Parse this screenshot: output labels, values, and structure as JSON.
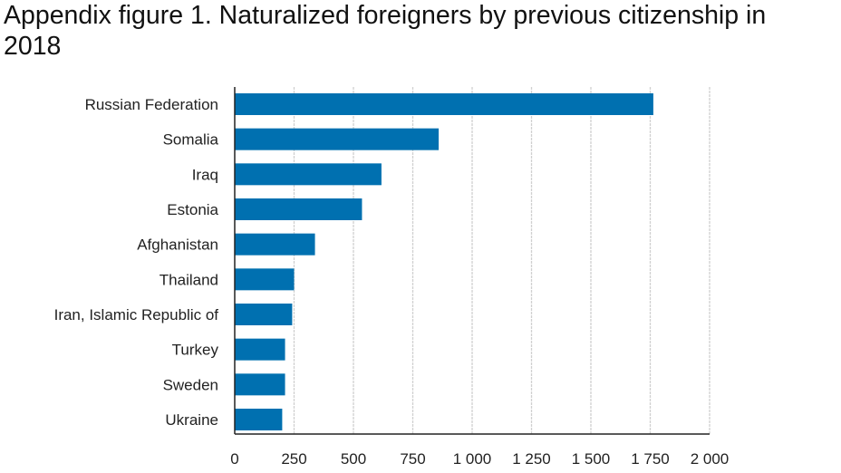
{
  "chart_data": {
    "type": "bar",
    "orientation": "horizontal",
    "title": "Appendix figure 1. Naturalized foreigners by previous citizenship in 2018",
    "categories": [
      "Russian Federation",
      "Somalia",
      "Iraq",
      "Estonia",
      "Afghanistan",
      "Thailand",
      "Iran, Islamic Republic of",
      "Turkey",
      "Sweden",
      "Ukraine"
    ],
    "values": [
      1763,
      859,
      618,
      536,
      338,
      250,
      242,
      212,
      212,
      200
    ],
    "xlim": [
      0,
      2000
    ],
    "xticks": [
      0,
      250,
      500,
      750,
      1000,
      1250,
      1500,
      1750,
      2000
    ],
    "xtick_labels": [
      "0",
      "250",
      "500",
      "750",
      "1 000",
      "1 250",
      "1 500",
      "1 750",
      "2 000"
    ],
    "xlabel": "",
    "ylabel": "",
    "grid": "vertical",
    "bar_color": "#0070b0"
  }
}
